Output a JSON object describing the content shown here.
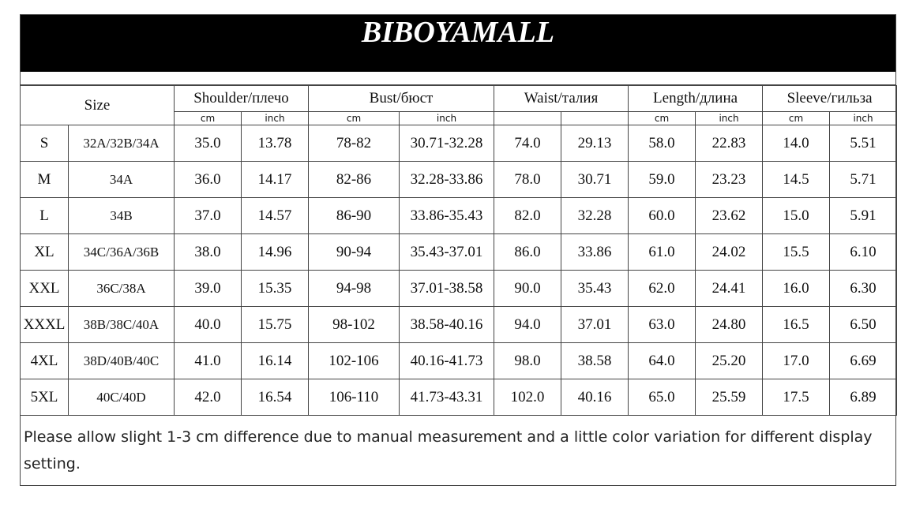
{
  "header": {
    "title": "BIBOYAMALL"
  },
  "table": {
    "size_header": "Size",
    "groups": [
      {
        "label": "Shoulder/плечо",
        "units": [
          "cm",
          "inch"
        ]
      },
      {
        "label": "Bust/бюст",
        "units": [
          "cm",
          "inch"
        ]
      },
      {
        "label": "Waist/талия"
      },
      {
        "label": "Length/длина",
        "units": [
          "cm",
          "inch"
        ]
      },
      {
        "label": "Sleeve/гильза",
        "units": [
          "cm",
          "inch"
        ]
      }
    ],
    "rows": [
      [
        "S",
        "32A/32B/34A",
        "35.0",
        "13.78",
        "78-82",
        "30.71-32.28",
        "74.0",
        "29.13",
        "58.0",
        "22.83",
        "14.0",
        "5.51"
      ],
      [
        "M",
        "34A",
        "36.0",
        "14.17",
        "82-86",
        "32.28-33.86",
        "78.0",
        "30.71",
        "59.0",
        "23.23",
        "14.5",
        "5.71"
      ],
      [
        "L",
        "34B",
        "37.0",
        "14.57",
        "86-90",
        "33.86-35.43",
        "82.0",
        "32.28",
        "60.0",
        "23.62",
        "15.0",
        "5.91"
      ],
      [
        "XL",
        "34C/36A/36B",
        "38.0",
        "14.96",
        "90-94",
        "35.43-37.01",
        "86.0",
        "33.86",
        "61.0",
        "24.02",
        "15.5",
        "6.10"
      ],
      [
        "XXL",
        "36C/38A",
        "39.0",
        "15.35",
        "94-98",
        "37.01-38.58",
        "90.0",
        "35.43",
        "62.0",
        "24.41",
        "16.0",
        "6.30"
      ],
      [
        "XXXL",
        "38B/38C/40A",
        "40.0",
        "15.75",
        "98-102",
        "38.58-40.16",
        "94.0",
        "37.01",
        "63.0",
        "24.80",
        "16.5",
        "6.50"
      ],
      [
        "4XL",
        "38D/40B/40C",
        "41.0",
        "16.14",
        "102-106",
        "40.16-41.73",
        "98.0",
        "38.58",
        "64.0",
        "25.20",
        "17.0",
        "6.69"
      ],
      [
        "5XL",
        "40C/40D",
        "42.0",
        "16.54",
        "106-110",
        "41.73-43.31",
        "102.0",
        "40.16",
        "65.0",
        "25.59",
        "17.5",
        "6.89"
      ]
    ]
  },
  "note": "Please allow slight 1-3 cm difference due to manual measurement and a little color variation for different display setting."
}
